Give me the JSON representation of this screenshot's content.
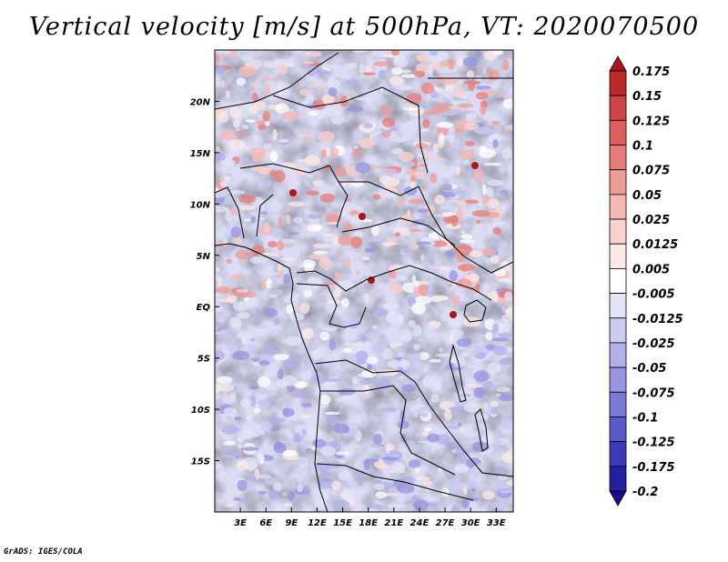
{
  "title": "Vertical velocity [m/s] at 500hPa, VT: 2020070500",
  "credit": "GrADS: IGES/COLA",
  "map": {
    "variable": "Vertical velocity",
    "units": "m/s",
    "level": "500hPa",
    "valid_time": "2020070500",
    "lon_range": [
      0,
      35
    ],
    "lat_range": [
      -20,
      25
    ],
    "lon_ticks": [
      3,
      6,
      9,
      12,
      15,
      18,
      21,
      24,
      27,
      30,
      33
    ],
    "lon_tick_labels": [
      "3E",
      "6E",
      "9E",
      "12E",
      "15E",
      "18E",
      "21E",
      "24E",
      "27E",
      "30E",
      "33E"
    ],
    "lat_ticks": [
      20,
      15,
      10,
      5,
      0,
      -5,
      -10,
      -15
    ],
    "lat_tick_labels": [
      "20N",
      "15N",
      "10N",
      "5N",
      "EQ",
      "5S",
      "10S",
      "15S"
    ]
  },
  "colorbar": {
    "labels": [
      "0.175",
      "0.15",
      "0.125",
      "0.1",
      "0.075",
      "0.05",
      "0.025",
      "0.0125",
      "0.005",
      "-0.005",
      "-0.0125",
      "-0.025",
      "-0.05",
      "-0.075",
      "-0.1",
      "-0.125",
      "-0.175",
      "-0.2"
    ],
    "colors": [
      "#a8161c",
      "#bb2b2c",
      "#cc4645",
      "#db5f5d",
      "#e67d79",
      "#ef9b97",
      "#f5b7b3",
      "#f9d1ce",
      "#fce8e6",
      "#ffffff",
      "#e4e4f7",
      "#cbcbf1",
      "#b0b0ea",
      "#9696e2",
      "#7979d7",
      "#5a5acb",
      "#3b3bb8",
      "#2121a2",
      "#170b8c"
    ]
  }
}
